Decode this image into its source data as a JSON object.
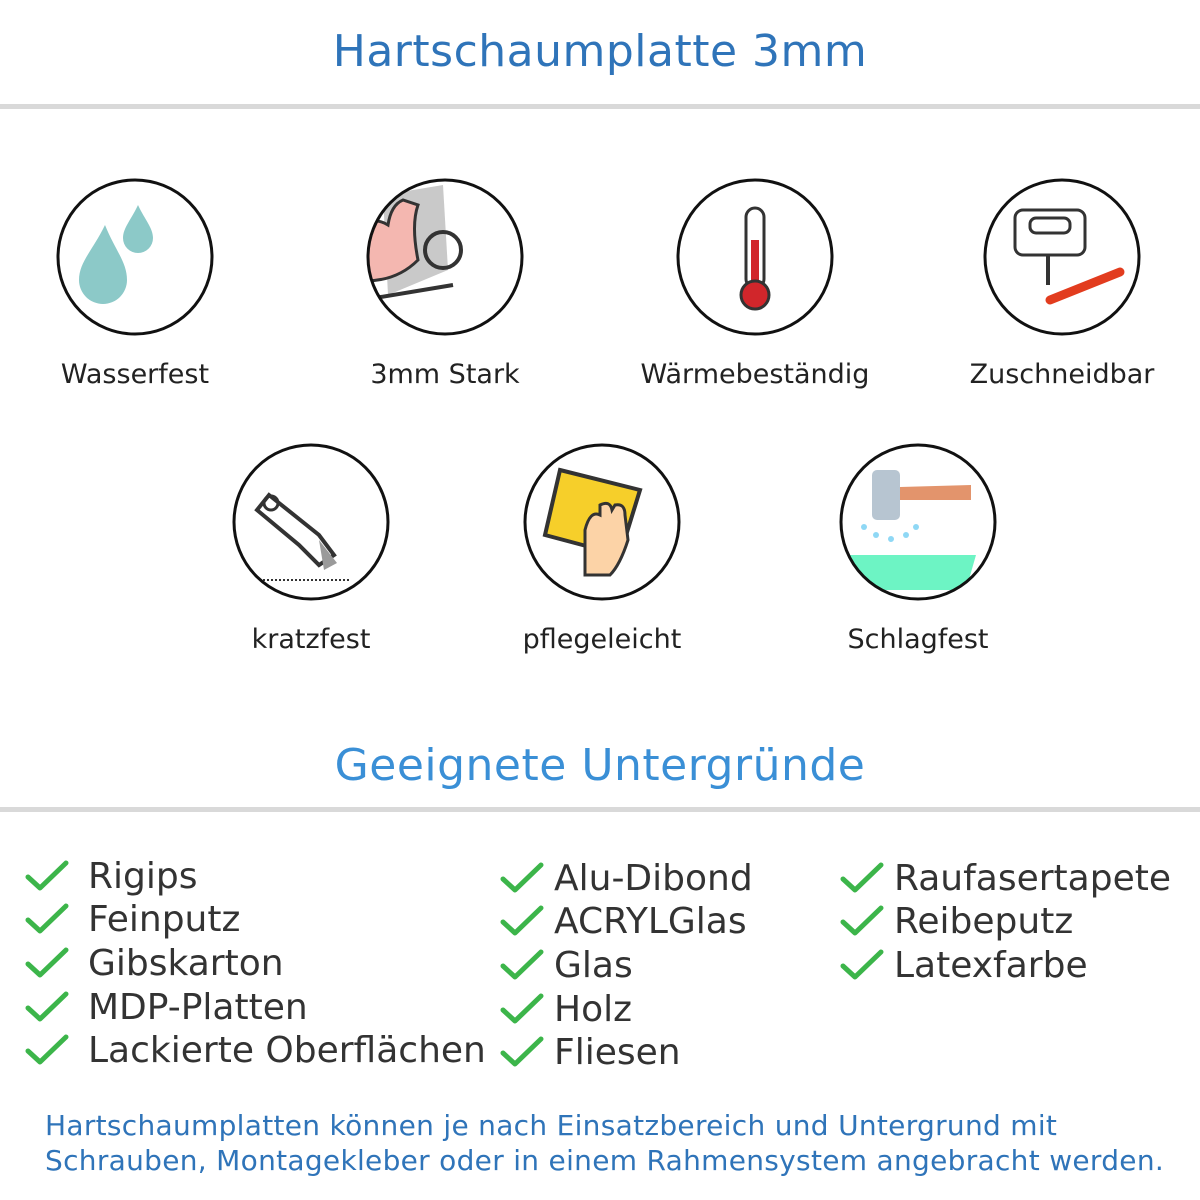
{
  "header": {
    "title": "Hartschaumplatte 3mm"
  },
  "features": [
    {
      "label": "Wasserfest",
      "icon": "water-drops-icon"
    },
    {
      "label": "3mm Stark",
      "icon": "flexed-arm-icon"
    },
    {
      "label": "Wärmebeständig",
      "icon": "thermometer-icon"
    },
    {
      "label": "Zuschneidbar",
      "icon": "jigsaw-cutter-icon"
    },
    {
      "label": "kratzfest",
      "icon": "utility-knife-icon"
    },
    {
      "label": "pflegeleicht",
      "icon": "hand-sponge-icon"
    },
    {
      "label": "Schlagfest",
      "icon": "hammer-icon"
    }
  ],
  "surfaces": {
    "title": "Geeignete Untergründe",
    "columns": [
      [
        "Rigips",
        "Feinputz",
        "Gibskarton",
        "MDP-Platten",
        "Lackierte Oberflächen"
      ],
      [
        "Alu-Dibond",
        "ACRYLGlas",
        "Glas",
        "Holz",
        "Fliesen"
      ],
      [
        "Raufasertapete",
        "Reibeputz",
        "Latexfarbe"
      ]
    ]
  },
  "footer": {
    "line1": "Hartschaumplatten können je nach Einsatzbereich und Untergrund mit",
    "line2": "Schrauben, Montagekleber oder in einem Rahmensystem angebracht werden."
  },
  "colors": {
    "title": "#2f74b9",
    "section_title": "#3a8fd6",
    "check": "#3cb54a",
    "divider": "#d9d9d9"
  }
}
